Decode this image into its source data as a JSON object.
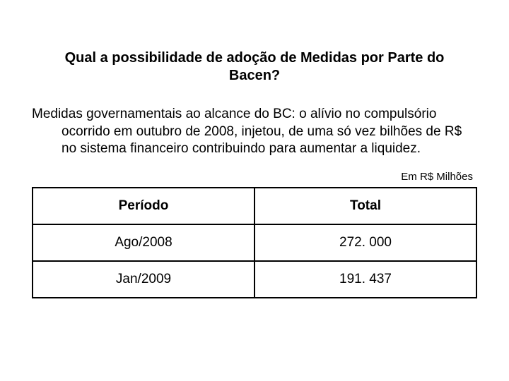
{
  "title": "Qual a possibilidade de adoção de Medidas por Parte do Bacen?",
  "body": "Medidas governamentais ao alcance do BC: o alívio no compulsório ocorrido em outubro de 2008, injetou, de uma só vez bilhões de R$ no sistema financeiro contribuindo para aumentar a liquidez.",
  "unit_label": "Em R$ Milhões",
  "table": {
    "columns": [
      "Período",
      "Total"
    ],
    "rows": [
      [
        "Ago/2008",
        "272. 000"
      ],
      [
        "Jan/2009",
        "191. 437"
      ]
    ],
    "border_color": "#000000",
    "header_fontweight": "bold",
    "cell_fontsize": 19,
    "text_align": "center"
  },
  "colors": {
    "background": "#ffffff",
    "text": "#000000"
  },
  "typography": {
    "font_family": "Comic Sans MS",
    "title_fontsize": 20,
    "body_fontsize": 19,
    "unit_fontsize": 15
  }
}
